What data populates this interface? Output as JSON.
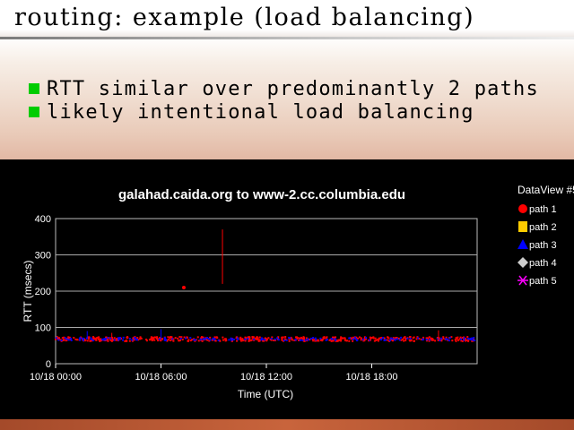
{
  "slide": {
    "title": "routing:  example  (load  balancing)",
    "bullets": [
      "RTT  similar  over  predominantly  2  paths",
      "likely  intentional  load  balancing"
    ],
    "colors": {
      "bullet": "#00cc00",
      "chart_background": "#000000",
      "footer": "#b85a33"
    }
  },
  "chart_data": {
    "type": "scatter",
    "title": "galahad.caida.org to www-2.cc.columbia.edu",
    "xlabel": "Time (UTC)",
    "ylabel": "RTT (msecs)",
    "ylim": [
      0,
      400
    ],
    "yticks": [
      "0",
      "100",
      "200",
      "300",
      "400"
    ],
    "xticks": [
      {
        "hour": 0,
        "label": "10/18 00:00"
      },
      {
        "hour": 6,
        "label": "10/18 06:00"
      },
      {
        "hour": 12,
        "label": "10/18 12:00"
      },
      {
        "hour": 18,
        "label": "10/18 18:00"
      }
    ],
    "xlim_hours": [
      0,
      24
    ],
    "grid": true,
    "legend_position": "right",
    "legend_title": "DataView #5",
    "legend": [
      {
        "name": "path 1",
        "marker": "circle",
        "color": "#ff0000"
      },
      {
        "name": "path 2",
        "marker": "square",
        "color": "#ffcc00"
      },
      {
        "name": "path 3",
        "marker": "triangle",
        "color": "#0000ff"
      },
      {
        "name": "path 4",
        "marker": "diamond",
        "color": "#cccccc"
      },
      {
        "name": "path 5",
        "marker": "asterisk",
        "color": "#ff00ff"
      }
    ],
    "series": [
      {
        "name": "path 1",
        "color": "#ff0000",
        "baseline_rtt": 68,
        "spread": 6
      },
      {
        "name": "path 3",
        "color": "#0000ff",
        "baseline_rtt": 68,
        "spread": 4
      }
    ],
    "spikes": [
      {
        "hour": 1.8,
        "rtt": 90,
        "color": "#0000ff"
      },
      {
        "hour": 3.2,
        "rtt": 85,
        "color": "#ff0000"
      },
      {
        "hour": 6.0,
        "rtt": 95,
        "color": "#0000ff"
      },
      {
        "hour": 7.3,
        "rtt": 210,
        "color": "#ff0000"
      },
      {
        "hour": 9.5,
        "rtt": 370,
        "color": "#ff0000"
      },
      {
        "hour": 21.8,
        "rtt": 92,
        "color": "#ff0000"
      }
    ]
  }
}
